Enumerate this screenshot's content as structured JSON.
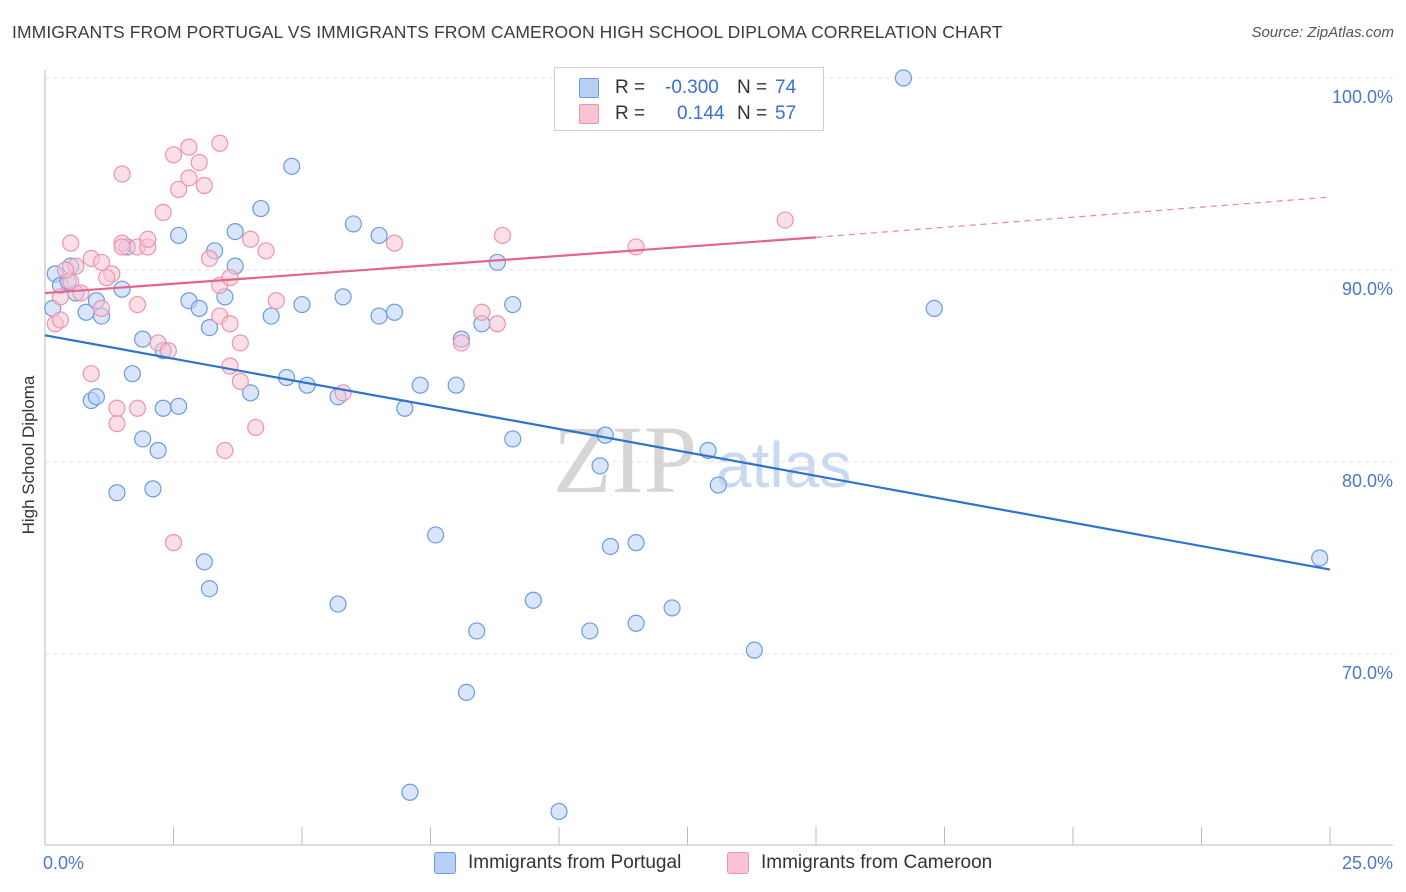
{
  "header": {
    "title": "IMMIGRANTS FROM PORTUGAL VS IMMIGRANTS FROM CAMEROON HIGH SCHOOL DIPLOMA CORRELATION CHART",
    "source": "Source: ZipAtlas.com"
  },
  "watermark": {
    "zip": "ZIP",
    "atlas": "atlas"
  },
  "legend": {
    "rows": [
      {
        "r_label": "R =",
        "r_value": "-0.300",
        "n_label": "N =",
        "n_value": "74",
        "color": "#b8d0f5"
      },
      {
        "r_label": "R =",
        "r_value": "0.144",
        "n_label": "N =",
        "n_value": "57",
        "color": "#f8c4d4"
      }
    ]
  },
  "colors": {
    "portugal_fill": "#b8d0f5",
    "portugal_stroke": "#6d9be0",
    "portugal_line": "#2f72d0",
    "cameroon_fill": "#f8c4d4",
    "cameroon_stroke": "#ee93ae",
    "cameroon_line": "#e5648e",
    "grid": "#e2e2e2",
    "axis_text": "#4a78c7"
  },
  "chart_data": {
    "type": "scatter",
    "title": "IMMIGRANTS FROM PORTUGAL VS IMMIGRANTS FROM CAMEROON HIGH SCHOOL DIPLOMA CORRELATION CHART",
    "xlabel": "",
    "ylabel": "High School Diploma",
    "xlim": [
      0,
      25
    ],
    "ylim": [
      59.5,
      101
    ],
    "x_tick_labels": [
      "0.0%",
      "25.0%"
    ],
    "y_ticks": [
      70,
      80,
      90,
      100
    ],
    "y_tick_labels": [
      "70.0%",
      "80.0%",
      "90.0%",
      "100.0%"
    ],
    "grid": "horizontal dashed",
    "legend_position": "bottom-center",
    "series": [
      {
        "name": "Immigrants from Portugal",
        "r": -0.3,
        "n": 74,
        "trend": {
          "x": [
            0,
            25
          ],
          "y": [
            86.6,
            74.4
          ]
        },
        "points": [
          [
            0.2,
            89.8
          ],
          [
            0.3,
            89.2
          ],
          [
            0.5,
            90.2
          ],
          [
            0.6,
            88.8
          ],
          [
            0.8,
            87.8
          ],
          [
            1.0,
            88.4
          ],
          [
            1.1,
            87.6
          ],
          [
            1.5,
            89.0
          ],
          [
            1.6,
            91.2
          ],
          [
            1.9,
            86.4
          ],
          [
            2.3,
            85.8
          ],
          [
            0.9,
            83.2
          ],
          [
            1.0,
            83.4
          ],
          [
            1.7,
            84.6
          ],
          [
            2.3,
            82.8
          ],
          [
            2.6,
            82.9
          ],
          [
            1.9,
            81.2
          ],
          [
            2.2,
            80.6
          ],
          [
            1.4,
            78.4
          ],
          [
            2.1,
            78.6
          ],
          [
            2.8,
            88.4
          ],
          [
            3.0,
            88.0
          ],
          [
            3.2,
            87.0
          ],
          [
            3.5,
            88.6
          ],
          [
            3.7,
            90.2
          ],
          [
            3.7,
            92.0
          ],
          [
            4.2,
            93.2
          ],
          [
            4.8,
            95.4
          ],
          [
            4.4,
            87.6
          ],
          [
            5.0,
            88.2
          ],
          [
            5.8,
            88.6
          ],
          [
            6.0,
            92.4
          ],
          [
            6.5,
            91.8
          ],
          [
            6.5,
            87.6
          ],
          [
            6.8,
            87.8
          ],
          [
            2.6,
            91.8
          ],
          [
            3.3,
            91.0
          ],
          [
            4.7,
            84.4
          ],
          [
            4.0,
            83.6
          ],
          [
            5.1,
            84.0
          ],
          [
            5.7,
            83.4
          ],
          [
            7.0,
            82.8
          ],
          [
            7.3,
            84.0
          ],
          [
            8.0,
            84.0
          ],
          [
            8.1,
            86.4
          ],
          [
            8.5,
            87.2
          ],
          [
            8.8,
            90.4
          ],
          [
            9.1,
            88.2
          ],
          [
            9.1,
            81.2
          ],
          [
            7.6,
            76.2
          ],
          [
            10.9,
            81.4
          ],
          [
            10.8,
            79.8
          ],
          [
            11.0,
            75.6
          ],
          [
            11.5,
            75.8
          ],
          [
            12.9,
            80.6
          ],
          [
            13.1,
            78.8
          ],
          [
            3.1,
            74.8
          ],
          [
            3.2,
            73.4
          ],
          [
            5.7,
            72.6
          ],
          [
            8.4,
            71.2
          ],
          [
            9.5,
            72.8
          ],
          [
            10.6,
            71.2
          ],
          [
            11.5,
            71.6
          ],
          [
            12.2,
            72.4
          ],
          [
            13.8,
            70.2
          ],
          [
            8.2,
            68.0
          ],
          [
            7.1,
            62.8
          ],
          [
            10.0,
            61.8
          ],
          [
            13.9,
            100.0
          ],
          [
            16.7,
            100.0
          ],
          [
            17.3,
            88.0
          ],
          [
            24.8,
            75.0
          ],
          [
            0.15,
            88.0
          ],
          [
            0.45,
            89.4
          ]
        ]
      },
      {
        "name": "Immigrants from Cameroon",
        "r": 0.144,
        "n": 57,
        "trend": {
          "x": [
            0,
            15.0
          ],
          "y": [
            88.8,
            91.7
          ]
        },
        "trend_dashed": {
          "x": [
            15.0,
            25
          ],
          "y": [
            91.7,
            93.8
          ]
        },
        "points": [
          [
            0.2,
            87.2
          ],
          [
            0.3,
            88.6
          ],
          [
            0.5,
            89.4
          ],
          [
            0.6,
            90.2
          ],
          [
            0.7,
            88.8
          ],
          [
            0.5,
            91.4
          ],
          [
            0.9,
            90.6
          ],
          [
            1.1,
            90.4
          ],
          [
            1.3,
            89.8
          ],
          [
            1.5,
            91.4
          ],
          [
            1.8,
            91.2
          ],
          [
            2.0,
            91.2
          ],
          [
            1.2,
            89.6
          ],
          [
            1.1,
            88.0
          ],
          [
            1.8,
            88.2
          ],
          [
            2.2,
            86.2
          ],
          [
            2.4,
            85.8
          ],
          [
            2.5,
            96.0
          ],
          [
            2.8,
            96.4
          ],
          [
            3.0,
            95.6
          ],
          [
            3.4,
            96.6
          ],
          [
            2.6,
            94.2
          ],
          [
            2.8,
            94.8
          ],
          [
            3.1,
            94.4
          ],
          [
            1.5,
            95.0
          ],
          [
            2.3,
            93.0
          ],
          [
            3.2,
            90.6
          ],
          [
            3.4,
            89.2
          ],
          [
            3.6,
            89.6
          ],
          [
            4.0,
            91.6
          ],
          [
            4.3,
            91.0
          ],
          [
            3.4,
            87.6
          ],
          [
            3.6,
            87.2
          ],
          [
            3.8,
            86.2
          ],
          [
            3.6,
            85.0
          ],
          [
            3.8,
            84.2
          ],
          [
            0.9,
            84.6
          ],
          [
            1.4,
            82.0
          ],
          [
            1.4,
            82.8
          ],
          [
            1.8,
            82.8
          ],
          [
            4.1,
            81.8
          ],
          [
            3.5,
            80.6
          ],
          [
            2.5,
            75.8
          ],
          [
            5.8,
            83.6
          ],
          [
            6.8,
            91.4
          ],
          [
            8.1,
            86.2
          ],
          [
            8.5,
            87.8
          ],
          [
            8.8,
            87.2
          ],
          [
            8.9,
            91.8
          ],
          [
            11.5,
            91.2
          ],
          [
            11.8,
            100.0
          ],
          [
            14.4,
            92.6
          ],
          [
            0.3,
            87.4
          ],
          [
            0.4,
            90.0
          ],
          [
            1.5,
            91.2
          ],
          [
            2.0,
            91.6
          ],
          [
            4.5,
            88.4
          ]
        ]
      }
    ]
  },
  "bottom_legend": {
    "items": [
      {
        "label": "Immigrants from Portugal",
        "color": "#b8d0f5"
      },
      {
        "label": "Immigrants from Cameroon",
        "color": "#f8c4d4"
      }
    ]
  }
}
